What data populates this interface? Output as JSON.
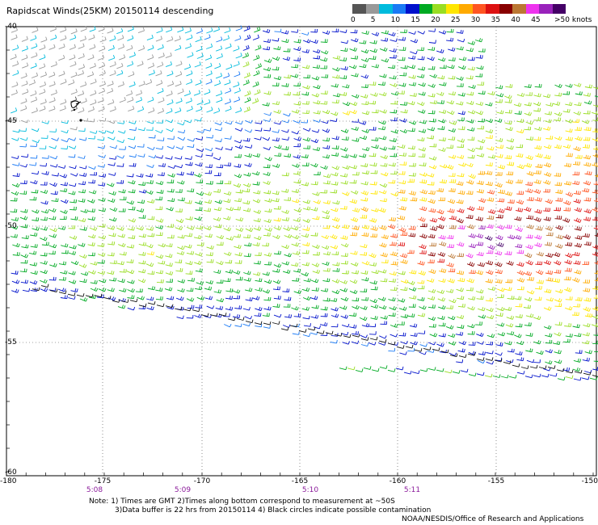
{
  "title": "Rapidscat Winds(25KM) 20150114 descending",
  "legend": {
    "colors": [
      "#555555",
      "#999999",
      "#00bbdd",
      "#1a7af5",
      "#0011cc",
      "#00aa22",
      "#99dd22",
      "#ffe600",
      "#ffaa00",
      "#ff5522",
      "#dd1111",
      "#880000",
      "#bb7733",
      "#ee33ee",
      "#9922bb",
      "#440066"
    ],
    "labels": [
      "0",
      "5",
      "10",
      "15",
      "20",
      "25",
      "30",
      "35",
      "40",
      "45",
      ">50 knots"
    ],
    "units": "knots"
  },
  "axes": {
    "lat_labels": [
      "-40",
      "-45",
      "-50",
      "-55",
      "-60"
    ],
    "lon_labels": [
      "-180",
      "-175",
      "-170",
      "-165",
      "-160",
      "-155",
      "-150"
    ],
    "time_labels": [
      "5:08",
      "5:09",
      "5:10",
      "5:11"
    ]
  },
  "notes": [
    "Note: 1) Times are GMT 2)Times along bottom correspond to measurement at ~50S",
    "3)Data buffer is 22 hrs from 20150114 4) Black circles indicate possible contamination"
  ],
  "credit": "NOAA/NESDIS/Office of Research and Applications"
}
